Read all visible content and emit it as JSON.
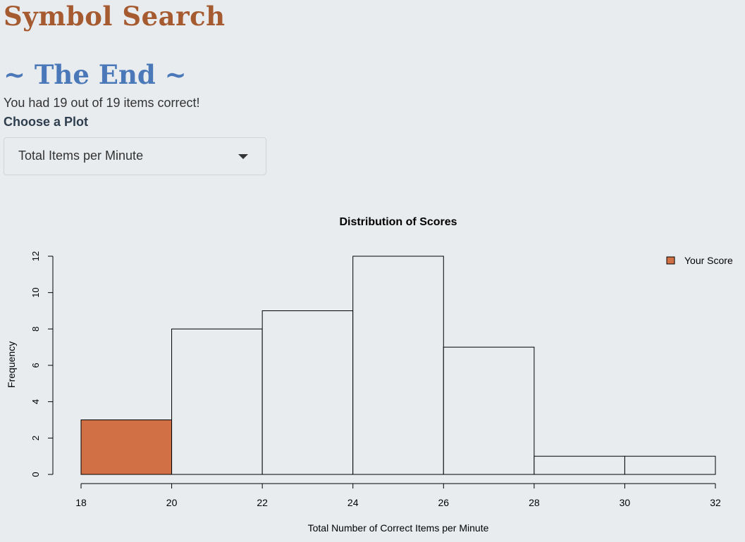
{
  "header": {
    "app_title": "Symbol Search",
    "end_title": "~ The End ~",
    "result_text": "You had 19 out of 19 items correct!"
  },
  "plot_selector": {
    "label": "Choose a Plot",
    "selected": "Total Items per Minute"
  },
  "chart_data": {
    "type": "bar",
    "title": "Distribution of Scores",
    "xlabel": "Total Number of Correct Items per Minute",
    "ylabel": "Frequency",
    "bins": [
      {
        "from": 18,
        "to": 20,
        "count": 3,
        "highlight": true
      },
      {
        "from": 20,
        "to": 22,
        "count": 8,
        "highlight": false
      },
      {
        "from": 22,
        "to": 24,
        "count": 9,
        "highlight": false
      },
      {
        "from": 24,
        "to": 26,
        "count": 12,
        "highlight": false
      },
      {
        "from": 26,
        "to": 28,
        "count": 7,
        "highlight": false
      },
      {
        "from": 28,
        "to": 30,
        "count": 1,
        "highlight": false
      },
      {
        "from": 30,
        "to": 32,
        "count": 1,
        "highlight": false
      }
    ],
    "xticks": [
      18,
      20,
      22,
      24,
      26,
      28,
      30,
      32
    ],
    "yticks": [
      0,
      2,
      4,
      6,
      8,
      10,
      12
    ],
    "xlim": [
      18,
      32
    ],
    "ylim": [
      0,
      12
    ],
    "legend": {
      "label": "Your Score",
      "position": "top-right"
    },
    "highlight_color": "#d07044",
    "bar_color": "#e9ecef",
    "grid": false
  }
}
